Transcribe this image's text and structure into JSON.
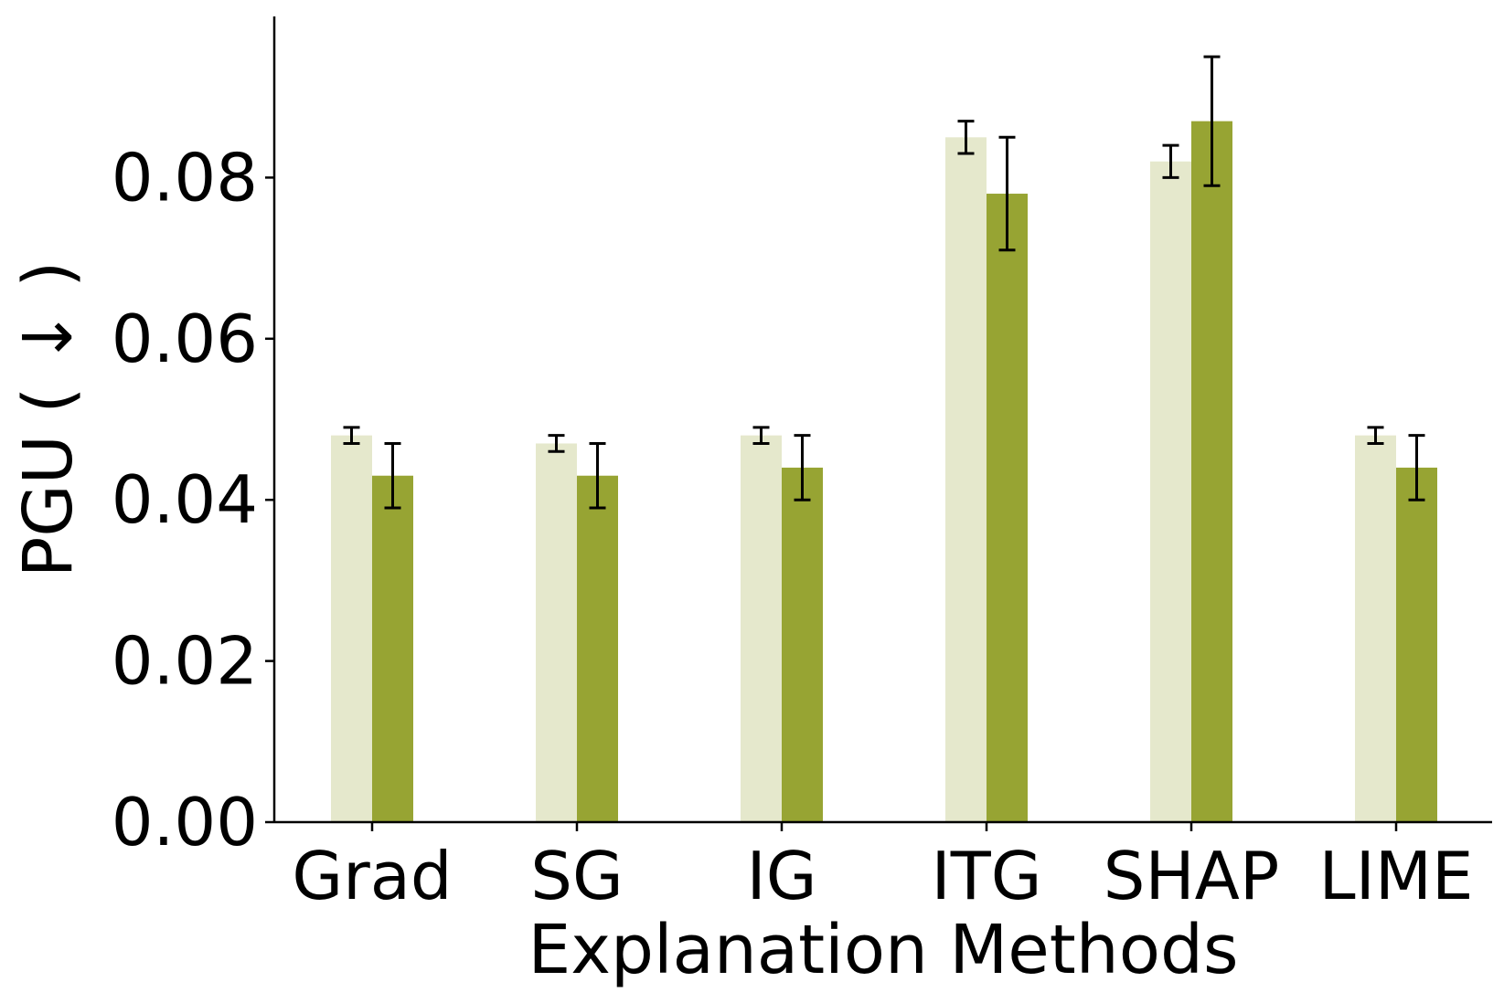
{
  "chart_data": {
    "type": "bar",
    "title": "",
    "xlabel": "Explanation Methods",
    "ylabel": "PGU ( ↓ )",
    "categories": [
      "Grad",
      "SG",
      "IG",
      "ITG",
      "SHAP",
      "LIME"
    ],
    "ylim": [
      0,
      0.1
    ],
    "yticks": [
      0.0,
      0.02,
      0.04,
      0.06,
      0.08
    ],
    "ytick_labels": [
      "0.00",
      "0.02",
      "0.04",
      "0.06",
      "0.08"
    ],
    "grid": false,
    "legend": "none",
    "series": [
      {
        "name": "series-light",
        "color": "#e5e8cc",
        "values": [
          0.048,
          0.047,
          0.048,
          0.085,
          0.082,
          0.048
        ],
        "errors": [
          0.001,
          0.001,
          0.001,
          0.002,
          0.002,
          0.001
        ]
      },
      {
        "name": "series-dark",
        "color": "#97a433",
        "values": [
          0.043,
          0.043,
          0.044,
          0.078,
          0.087,
          0.044
        ],
        "errors": [
          0.004,
          0.004,
          0.004,
          0.007,
          0.008,
          0.004
        ]
      }
    ]
  }
}
